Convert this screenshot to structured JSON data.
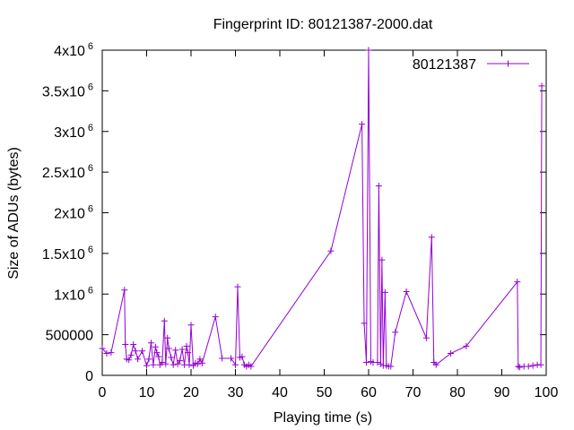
{
  "chart_data": {
    "type": "line",
    "title": "Fingerprint ID: 80121387-2000.dat",
    "xlabel": "Playing time (s)",
    "ylabel": "Size of ADUs (bytes)",
    "xlim": [
      0,
      100
    ],
    "ylim": [
      0,
      4000000
    ],
    "legend_position": "top-right",
    "grid": false,
    "x_ticks": [
      "0",
      "10",
      "20",
      "30",
      "40",
      "50",
      "60",
      "70",
      "80",
      "90",
      "100"
    ],
    "y_ticks": [
      {
        "value": 0,
        "base": "0",
        "sup": ""
      },
      {
        "value": 500000,
        "base": "500000",
        "sup": ""
      },
      {
        "value": 1000000,
        "base": "1x10",
        "sup": "6"
      },
      {
        "value": 1500000,
        "base": "1.5x10",
        "sup": "6"
      },
      {
        "value": 2000000,
        "base": "2x10",
        "sup": "6"
      },
      {
        "value": 2500000,
        "base": "2.5x10",
        "sup": "6"
      },
      {
        "value": 3000000,
        "base": "3x10",
        "sup": "6"
      },
      {
        "value": 3500000,
        "base": "3.5x10",
        "sup": "6"
      },
      {
        "value": 4000000,
        "base": "4x10",
        "sup": "6"
      }
    ],
    "series": [
      {
        "name": "80121387",
        "color": "#9400d3",
        "x": [
          0,
          1,
          2,
          5,
          5.2,
          5.5,
          6,
          6.5,
          7,
          7.5,
          8,
          9,
          10,
          10.5,
          11,
          11.5,
          12,
          12.3,
          12.7,
          13,
          13.5,
          14,
          14.3,
          14.7,
          15,
          15.5,
          16,
          16.5,
          17,
          17.5,
          18,
          18.5,
          19,
          19.3,
          19.6,
          20,
          20.5,
          21,
          21.5,
          22,
          22.5,
          25.5,
          27,
          29,
          30,
          30.5,
          31,
          31.5,
          32,
          32.5,
          33,
          33.5,
          51.5,
          58.5,
          59,
          59.5,
          60,
          60.5,
          61,
          62,
          62.3,
          62.7,
          63,
          63.3,
          63.7,
          64,
          64.5,
          65,
          66,
          68.5,
          73,
          74.2,
          74.7,
          75.2,
          78.5,
          82,
          93.5,
          93.7,
          94,
          95,
          96,
          97,
          98,
          98.8,
          99
        ],
        "values": [
          330000,
          270000,
          280000,
          1050000,
          380000,
          200000,
          190000,
          250000,
          380000,
          300000,
          200000,
          300000,
          120000,
          200000,
          400000,
          130000,
          350000,
          280000,
          230000,
          130000,
          160000,
          670000,
          140000,
          460000,
          330000,
          220000,
          130000,
          310000,
          140000,
          180000,
          320000,
          130000,
          360000,
          280000,
          130000,
          620000,
          120000,
          150000,
          140000,
          200000,
          150000,
          720000,
          210000,
          210000,
          130000,
          1090000,
          220000,
          230000,
          130000,
          110000,
          130000,
          110000,
          1530000,
          3090000,
          640000,
          160000,
          4000000,
          170000,
          160000,
          160000,
          2330000,
          140000,
          1420000,
          120000,
          1020000,
          120000,
          110000,
          110000,
          530000,
          1030000,
          460000,
          1700000,
          160000,
          130000,
          270000,
          360000,
          1150000,
          110000,
          100000,
          110000,
          110000,
          120000,
          130000,
          130000,
          3560000
        ]
      }
    ]
  }
}
